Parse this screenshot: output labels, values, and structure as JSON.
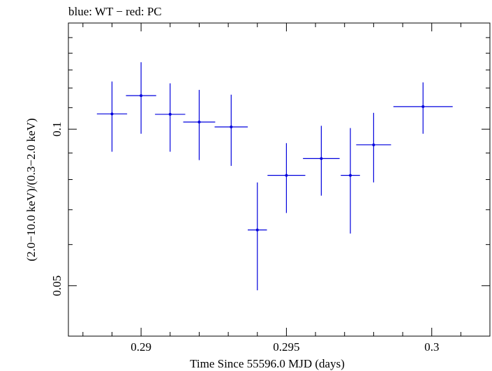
{
  "chart_data": {
    "type": "scatter",
    "title": "blue: WT − red: PC",
    "xlabel": "Time Since 55596.0 MJD (days)",
    "ylabel": "(2.0−10.0 keV)/(0.3−2.0 keV)",
    "xlim": [
      0.2875,
      0.302
    ],
    "ylim": [
      0.04,
      0.16
    ],
    "yscale": "log",
    "xticks": [
      0.29,
      0.295,
      0.3
    ],
    "xtick_labels": [
      "0.29",
      "0.295",
      "0.3"
    ],
    "yticks": [
      0.05,
      0.1
    ],
    "ytick_labels": [
      "0.05",
      "0.1"
    ],
    "grid": false,
    "series": [
      {
        "color": "#0000dd",
        "points": [
          {
            "x": 0.289,
            "xerr": 0.00052,
            "y": 0.107,
            "ylo": 0.0905,
            "yhi": 0.1235
          },
          {
            "x": 0.29,
            "xerr": 0.00052,
            "y": 0.116,
            "ylo": 0.098,
            "yhi": 0.1345
          },
          {
            "x": 0.291,
            "xerr": 0.00052,
            "y": 0.1068,
            "ylo": 0.0905,
            "yhi": 0.1225
          },
          {
            "x": 0.292,
            "xerr": 0.00055,
            "y": 0.1032,
            "ylo": 0.0872,
            "yhi": 0.119
          },
          {
            "x": 0.2931,
            "xerr": 0.00057,
            "y": 0.101,
            "ylo": 0.085,
            "yhi": 0.1165
          },
          {
            "x": 0.294,
            "xerr": 0.00033,
            "y": 0.064,
            "ylo": 0.049,
            "yhi": 0.079
          },
          {
            "x": 0.295,
            "xerr": 0.00065,
            "y": 0.0815,
            "ylo": 0.069,
            "yhi": 0.094
          },
          {
            "x": 0.2962,
            "xerr": 0.00063,
            "y": 0.0878,
            "ylo": 0.0745,
            "yhi": 0.1015
          },
          {
            "x": 0.2972,
            "xerr": 0.00033,
            "y": 0.0815,
            "ylo": 0.063,
            "yhi": 0.1005
          },
          {
            "x": 0.298,
            "xerr": 0.0006,
            "y": 0.0933,
            "ylo": 0.079,
            "yhi": 0.1075
          },
          {
            "x": 0.2997,
            "xerr": 0.00102,
            "y": 0.1105,
            "ylo": 0.098,
            "yhi": 0.123
          }
        ]
      }
    ]
  }
}
